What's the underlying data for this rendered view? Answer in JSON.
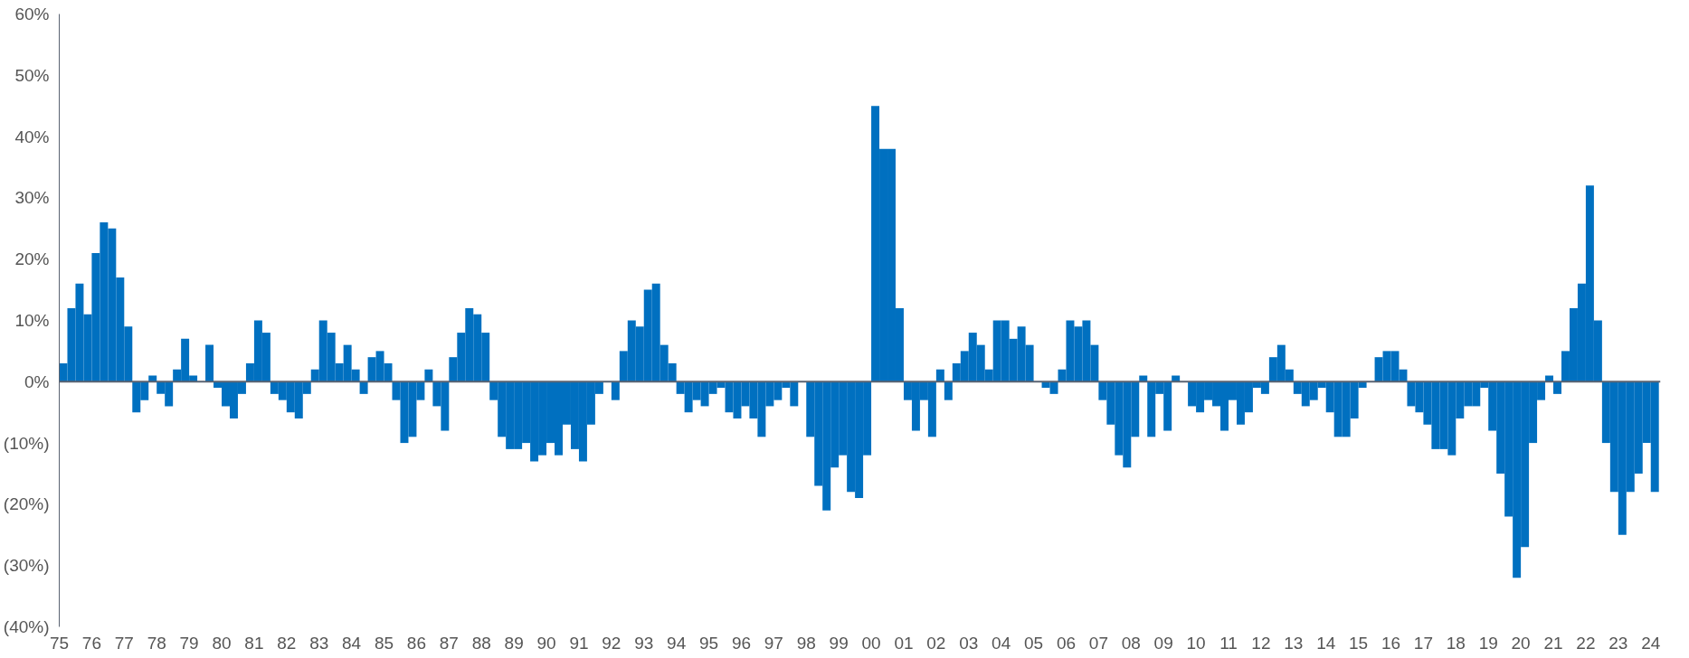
{
  "chart_data": {
    "type": "bar",
    "color": "#0070c0",
    "x": [
      1975.125,
      1975.375,
      1975.625,
      1975.875,
      1976.125,
      1976.375,
      1976.625,
      1976.875,
      1977.125,
      1977.375,
      1977.625,
      1977.875,
      1978.125,
      1978.375,
      1978.625,
      1978.875,
      1979.125,
      1979.375,
      1979.625,
      1979.875,
      1980.125,
      1980.375,
      1980.625,
      1980.875,
      1981.125,
      1981.375,
      1981.625,
      1981.875,
      1982.125,
      1982.375,
      1982.625,
      1982.875,
      1983.125,
      1983.375,
      1983.625,
      1983.875,
      1984.125,
      1984.375,
      1984.625,
      1984.875,
      1985.125,
      1985.375,
      1985.625,
      1985.875,
      1986.125,
      1986.375,
      1986.625,
      1986.875,
      1987.125,
      1987.375,
      1987.625,
      1987.875,
      1988.125,
      1988.375,
      1988.625,
      1988.875,
      1989.125,
      1989.375,
      1989.625,
      1989.875,
      1990.125,
      1990.375,
      1990.625,
      1990.875,
      1991.125,
      1991.375,
      1991.625,
      1991.875,
      1992.125,
      1992.375,
      1992.625,
      1992.875,
      1993.125,
      1993.375,
      1993.625,
      1993.875,
      1994.125,
      1994.375,
      1994.625,
      1994.875,
      1995.125,
      1995.375,
      1995.625,
      1995.875,
      1996.125,
      1996.375,
      1996.625,
      1996.875,
      1997.125,
      1997.375,
      1997.625,
      1997.875,
      1998.125,
      1998.375,
      1998.625,
      1998.875,
      1999.125,
      1999.375,
      1999.625,
      1999.875,
      2000.125,
      2000.375,
      2000.625,
      2000.875,
      2001.125,
      2001.375,
      2001.625,
      2001.875,
      2002.125,
      2002.375,
      2002.625,
      2002.875,
      2003.125,
      2003.375,
      2003.625,
      2003.875,
      2004.125,
      2004.375,
      2004.625,
      2004.875,
      2005.125,
      2005.375,
      2005.625,
      2005.875,
      2006.125,
      2006.375,
      2006.625,
      2006.875,
      2007.125,
      2007.375,
      2007.625,
      2007.875,
      2008.125,
      2008.375,
      2008.625,
      2008.875,
      2009.125,
      2009.375,
      2009.625,
      2009.875,
      2010.125,
      2010.375,
      2010.625,
      2010.875,
      2011.125,
      2011.375,
      2011.625,
      2011.875,
      2012.125,
      2012.375,
      2012.625,
      2012.875,
      2013.125,
      2013.375,
      2013.625,
      2013.875,
      2014.125,
      2014.375,
      2014.625,
      2014.875,
      2015.125,
      2015.375,
      2015.625,
      2015.875,
      2016.125,
      2016.375,
      2016.625,
      2016.875,
      2017.125,
      2017.375,
      2017.625,
      2017.875,
      2018.125,
      2018.375,
      2018.625,
      2018.875,
      2019.125,
      2019.375,
      2019.625,
      2019.875,
      2020.125,
      2020.375,
      2020.625,
      2020.875,
      2021.125,
      2021.375,
      2021.625,
      2021.875,
      2022.125,
      2022.375,
      2022.625,
      2022.875,
      2023.125,
      2023.375,
      2023.625,
      2023.875,
      2024.125
    ],
    "values": [
      3,
      12,
      16,
      11,
      21,
      26,
      25,
      17,
      9,
      -5,
      -3,
      1,
      -2,
      -4,
      2,
      7,
      1,
      0,
      6,
      -1,
      -4,
      -6,
      -2,
      3,
      10,
      8,
      -2,
      -3,
      -5,
      -6,
      -2,
      2,
      10,
      8,
      3,
      6,
      2,
      -2,
      4,
      5,
      3,
      -3,
      -10,
      -9,
      -3,
      2,
      -4,
      -8,
      4,
      8,
      12,
      11,
      8,
      -3,
      -9,
      -11,
      -11,
      -10,
      -13,
      -12,
      -10,
      -12,
      -7,
      -11,
      -13,
      -7,
      -2,
      0,
      -3,
      5,
      10,
      9,
      15,
      16,
      6,
      3,
      -2,
      -5,
      -3,
      -4,
      -2,
      -1,
      -5,
      -6,
      -4,
      -6,
      -9,
      -4,
      -3,
      -1,
      -4,
      0,
      -9,
      -17,
      -21,
      -14,
      -12,
      -18,
      -19,
      -12,
      45,
      38,
      38,
      12,
      -3,
      -8,
      -3,
      -9,
      2,
      -3,
      3,
      5,
      8,
      6,
      2,
      10,
      10,
      7,
      9,
      6,
      0,
      -1,
      -2,
      2,
      10,
      9,
      10,
      6,
      -3,
      -7,
      -12,
      -14,
      -9,
      1,
      -9,
      -2,
      -8,
      1,
      0,
      -4,
      -5,
      -3,
      -4,
      -8,
      -3,
      -7,
      -5,
      -1,
      -2,
      4,
      6,
      2,
      -2,
      -4,
      -3,
      -1,
      -5,
      -9,
      -9,
      -6,
      -1,
      0,
      4,
      5,
      5,
      2,
      -4,
      -5,
      -7,
      -11,
      -11,
      -12,
      -6,
      -4,
      -4,
      -1,
      -8,
      -15,
      -22,
      -32,
      -27,
      -10,
      -3,
      1,
      -2,
      5,
      12,
      16,
      32,
      10,
      -10,
      -18,
      -25,
      -18,
      -15,
      -10,
      -18
    ],
    "xlim": [
      1975,
      2024.3
    ],
    "xticks": [
      {
        "value": 1975,
        "label": "75"
      },
      {
        "value": 1976,
        "label": "76"
      },
      {
        "value": 1977,
        "label": "77"
      },
      {
        "value": 1978,
        "label": "78"
      },
      {
        "value": 1979,
        "label": "79"
      },
      {
        "value": 1980,
        "label": "80"
      },
      {
        "value": 1981,
        "label": "81"
      },
      {
        "value": 1982,
        "label": "82"
      },
      {
        "value": 1983,
        "label": "83"
      },
      {
        "value": 1984,
        "label": "84"
      },
      {
        "value": 1985,
        "label": "85"
      },
      {
        "value": 1986,
        "label": "86"
      },
      {
        "value": 1987,
        "label": "87"
      },
      {
        "value": 1988,
        "label": "88"
      },
      {
        "value": 1989,
        "label": "89"
      },
      {
        "value": 1990,
        "label": "90"
      },
      {
        "value": 1991,
        "label": "91"
      },
      {
        "value": 1992,
        "label": "92"
      },
      {
        "value": 1993,
        "label": "93"
      },
      {
        "value": 1994,
        "label": "94"
      },
      {
        "value": 1995,
        "label": "95"
      },
      {
        "value": 1996,
        "label": "96"
      },
      {
        "value": 1997,
        "label": "97"
      },
      {
        "value": 1998,
        "label": "98"
      },
      {
        "value": 1999,
        "label": "99"
      },
      {
        "value": 2000,
        "label": "00"
      },
      {
        "value": 2001,
        "label": "01"
      },
      {
        "value": 2002,
        "label": "02"
      },
      {
        "value": 2003,
        "label": "03"
      },
      {
        "value": 2004,
        "label": "04"
      },
      {
        "value": 2005,
        "label": "05"
      },
      {
        "value": 2006,
        "label": "06"
      },
      {
        "value": 2007,
        "label": "07"
      },
      {
        "value": 2008,
        "label": "08"
      },
      {
        "value": 2009,
        "label": "09"
      },
      {
        "value": 2010,
        "label": "10"
      },
      {
        "value": 2011,
        "label": "11"
      },
      {
        "value": 2012,
        "label": "12"
      },
      {
        "value": 2013,
        "label": "13"
      },
      {
        "value": 2014,
        "label": "14"
      },
      {
        "value": 2015,
        "label": "15"
      },
      {
        "value": 2016,
        "label": "16"
      },
      {
        "value": 2017,
        "label": "17"
      },
      {
        "value": 2018,
        "label": "18"
      },
      {
        "value": 2019,
        "label": "19"
      },
      {
        "value": 2020,
        "label": "20"
      },
      {
        "value": 2021,
        "label": "21"
      },
      {
        "value": 2022,
        "label": "22"
      },
      {
        "value": 2023,
        "label": "23"
      },
      {
        "value": 2024,
        "label": "24"
      }
    ],
    "ylim": [
      -40,
      60
    ],
    "yticks": [
      {
        "value": -40,
        "label": "(40%)"
      },
      {
        "value": -30,
        "label": "(30%)"
      },
      {
        "value": -20,
        "label": "(20%)"
      },
      {
        "value": -10,
        "label": "(10%)"
      },
      {
        "value": 0,
        "label": "0%"
      },
      {
        "value": 10,
        "label": "10%"
      },
      {
        "value": 20,
        "label": "20%"
      },
      {
        "value": 30,
        "label": "30%"
      },
      {
        "value": 40,
        "label": "40%"
      },
      {
        "value": 50,
        "label": "50%"
      },
      {
        "value": 60,
        "label": "60%"
      }
    ],
    "ref_lines": [
      {
        "axis": "y",
        "value": 0,
        "color": "#5a6372"
      }
    ]
  }
}
